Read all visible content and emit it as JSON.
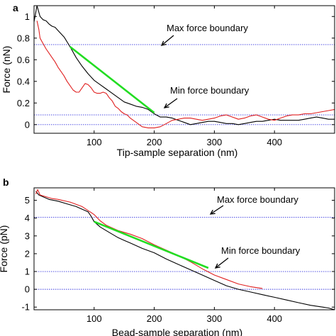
{
  "chart_data": [
    {
      "panel_label": "a",
      "type": "line",
      "xlabel": "Tip-sample separation (nm)",
      "ylabel": "Force (nN)",
      "xlim": [
        0,
        500
      ],
      "ylim": [
        -0.08,
        1.1
      ],
      "xticks": [
        100,
        200,
        300,
        400
      ],
      "yticks": [
        0,
        0.2,
        0.4,
        0.6,
        0.8,
        1
      ],
      "grid": false,
      "boundaries": [
        {
          "value": 0.74,
          "label": "Max force boundary",
          "color": "#3a3adf"
        },
        {
          "value": 0.09,
          "label": "Min force boundary",
          "color": "#3a3adf"
        },
        {
          "value": 0.0,
          "label": "",
          "color": "#3a3adf"
        }
      ],
      "series": [
        {
          "color": "#000000",
          "x": [
            0,
            5,
            10,
            15,
            20,
            25,
            30,
            35,
            40,
            50,
            60,
            70,
            80,
            90,
            100,
            110,
            120,
            130,
            140,
            150,
            160,
            170,
            180,
            190,
            200,
            210,
            220,
            230,
            240,
            250,
            260,
            270,
            280,
            290,
            300,
            310,
            320,
            330,
            340,
            350,
            360,
            370,
            380,
            390,
            400,
            410,
            420,
            430,
            440,
            450,
            460,
            470,
            480,
            490,
            500
          ],
          "y": [
            0.95,
            1.1,
            1.0,
            0.97,
            0.96,
            0.93,
            0.91,
            0.9,
            0.87,
            0.81,
            0.72,
            0.62,
            0.54,
            0.47,
            0.41,
            0.37,
            0.33,
            0.29,
            0.25,
            0.21,
            0.19,
            0.17,
            0.16,
            0.14,
            0.1,
            0.07,
            0.07,
            0.06,
            0.04,
            0.02,
            0.0,
            0.01,
            0.02,
            0.03,
            0.03,
            0.02,
            0.01,
            0.01,
            0.0,
            0.01,
            0.02,
            0.03,
            0.03,
            0.04,
            0.05,
            0.04,
            0.04,
            0.04,
            0.04,
            0.05,
            0.06,
            0.07,
            0.06,
            0.05,
            0.05
          ]
        },
        {
          "color": "#e02020",
          "x": [
            5,
            8,
            10,
            15,
            20,
            25,
            30,
            35,
            40,
            45,
            50,
            55,
            60,
            65,
            70,
            75,
            80,
            85,
            90,
            95,
            100,
            105,
            110,
            115,
            120,
            125,
            130,
            135,
            140,
            145,
            150,
            155,
            160,
            170,
            180,
            190,
            200,
            210,
            220,
            230,
            240,
            250,
            260,
            270,
            280,
            290,
            300,
            310,
            320,
            330,
            340,
            350,
            360,
            370,
            380,
            390,
            400,
            410,
            420,
            430,
            440,
            450,
            460,
            470,
            480,
            490,
            500
          ],
          "y": [
            0.96,
            0.88,
            0.8,
            0.75,
            0.7,
            0.66,
            0.62,
            0.58,
            0.53,
            0.49,
            0.45,
            0.4,
            0.36,
            0.32,
            0.3,
            0.3,
            0.34,
            0.38,
            0.37,
            0.34,
            0.3,
            0.29,
            0.29,
            0.3,
            0.29,
            0.25,
            0.22,
            0.17,
            0.15,
            0.12,
            0.1,
            0.09,
            0.06,
            0.02,
            -0.02,
            -0.03,
            -0.03,
            -0.02,
            0.01,
            0.04,
            0.05,
            0.06,
            0.06,
            0.05,
            0.04,
            0.05,
            0.06,
            0.08,
            0.09,
            0.07,
            0.05,
            0.06,
            0.08,
            0.09,
            0.07,
            0.05,
            0.04,
            0.06,
            0.08,
            0.09,
            0.09,
            0.1,
            0.1,
            0.11,
            0.12,
            0.13,
            0.14
          ]
        },
        {
          "color": "#22dd22",
          "x": [
            60,
            200
          ],
          "y": [
            0.72,
            0.11
          ]
        }
      ]
    },
    {
      "panel_label": "b",
      "type": "line",
      "xlabel": "Bead-sample separation (nm)",
      "ylabel": "Force (pN)",
      "xlim": [
        0,
        500
      ],
      "ylim": [
        -1.15,
        5.7
      ],
      "xticks": [
        100,
        200,
        300,
        400
      ],
      "yticks": [
        -1,
        0,
        1,
        2,
        3,
        4,
        5
      ],
      "grid": false,
      "boundaries": [
        {
          "value": 4.05,
          "label": "Max force boundary",
          "color": "#3a3adf"
        },
        {
          "value": 1.0,
          "label": "Min force boundary",
          "color": "#3a3adf"
        },
        {
          "value": 0.0,
          "label": "",
          "color": "#3a3adf"
        }
      ],
      "series": [
        {
          "color": "#000000",
          "x": [
            3,
            8,
            15,
            25,
            40,
            55,
            70,
            80,
            90,
            95,
            100,
            110,
            120,
            130,
            140,
            150,
            160,
            180,
            200,
            220,
            240,
            260,
            280,
            300,
            320,
            340,
            360,
            380,
            400,
            420,
            440,
            460,
            480,
            490,
            500
          ],
          "y": [
            5.5,
            5.3,
            5.2,
            5.05,
            4.95,
            4.8,
            4.65,
            4.5,
            4.35,
            4.1,
            3.8,
            3.5,
            3.3,
            3.1,
            2.9,
            2.75,
            2.6,
            2.3,
            2.05,
            1.7,
            1.4,
            1.1,
            0.8,
            0.5,
            0.2,
            0.0,
            -0.15,
            -0.3,
            -0.45,
            -0.6,
            -0.75,
            -0.9,
            -1.0,
            -1.05,
            -1.15
          ]
        },
        {
          "color": "#e02020",
          "x": [
            3,
            6,
            10,
            20,
            30,
            40,
            60,
            80,
            100,
            110,
            120,
            130,
            140,
            160,
            180,
            200,
            220,
            240,
            260,
            280,
            300,
            320,
            340,
            360,
            380
          ],
          "y": [
            5.35,
            5.6,
            5.3,
            5.2,
            5.1,
            5.05,
            4.9,
            4.65,
            4.2,
            3.85,
            3.6,
            3.45,
            3.3,
            3.1,
            2.85,
            2.5,
            2.2,
            1.9,
            1.55,
            1.15,
            0.8,
            0.55,
            0.3,
            0.15,
            0.05
          ]
        },
        {
          "color": "#22dd22",
          "x": [
            100,
            290
          ],
          "y": [
            3.8,
            1.2
          ]
        }
      ]
    }
  ]
}
